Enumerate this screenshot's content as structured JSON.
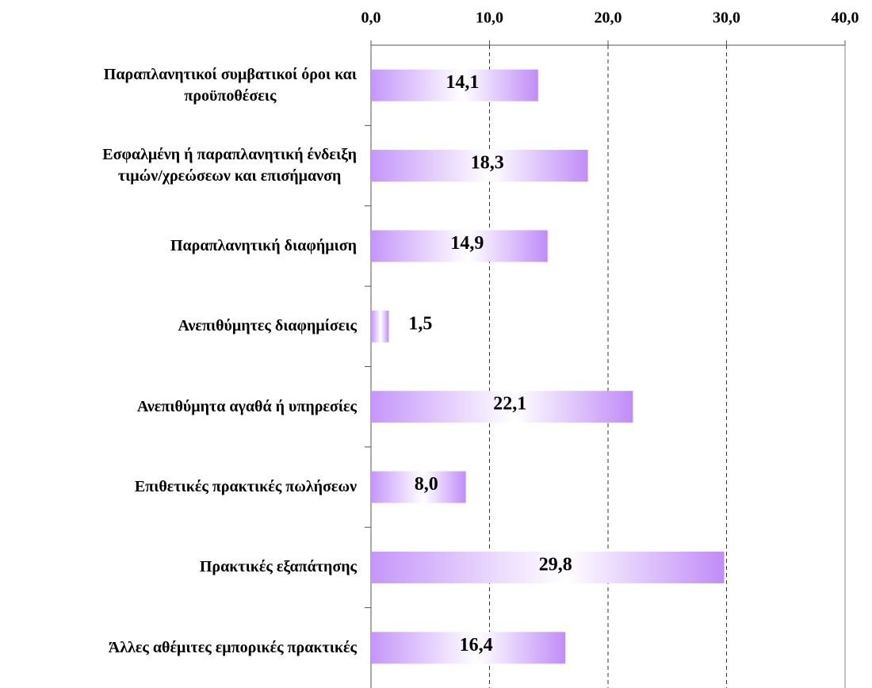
{
  "chart_data": {
    "type": "bar",
    "orientation": "horizontal",
    "categories": [
      "Παραπλανητικοί συμβατικοί όροι και\nπροϋποθέσεις",
      "Εσφαλμένη ή παραπλανητική ένδειξη\nτιμών/χρεώσεων και επισήμανση",
      "Παραπλανητική διαφήμιση",
      "Ανεπιθύμητες διαφημίσεις",
      "Ανεπιθύμητα αγαθά ή υπηρεσίες",
      "Επιθετικές πρακτικές πωλήσεων",
      "Πρακτικές εξαπάτησης",
      "Άλλες αθέμιτες εμπορικές πρακτικές"
    ],
    "values": [
      14.1,
      18.3,
      14.9,
      1.5,
      22.1,
      8.0,
      29.8,
      16.4
    ],
    "value_labels": [
      "14,1",
      "18,3",
      "14,9",
      "1,5",
      "22,1",
      "8,0",
      "29,8",
      "16,4"
    ],
    "color": "#c08cf8",
    "xlim": [
      0,
      40
    ],
    "xticks": [
      {
        "value": 0,
        "label": "0,0"
      },
      {
        "value": 10,
        "label": "10,0"
      },
      {
        "value": 20,
        "label": "20,0"
      },
      {
        "value": 30,
        "label": "30,0"
      },
      {
        "value": 40,
        "label": "40,0"
      }
    ],
    "grid": true
  }
}
